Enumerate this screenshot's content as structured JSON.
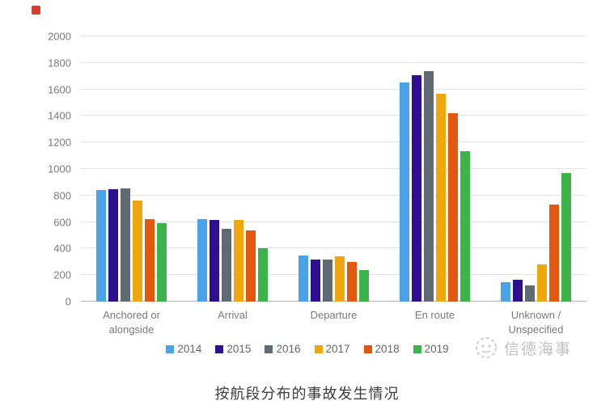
{
  "corner_icon": {
    "color": "#df3b2a"
  },
  "chart_data": {
    "type": "bar",
    "title": "按航段分布的事故发生情况",
    "categories": [
      "Anchored or alongside",
      "Arrival",
      "Departure",
      "En route",
      "Unknown / Unspecified"
    ],
    "category_labels_wrapped": [
      "Anchored or\nalongside",
      "Arrival",
      "Departure",
      "En route",
      "Unknown /\nUnspecified"
    ],
    "series": [
      {
        "name": "2014",
        "color": "#4aa3e8",
        "values": [
          840,
          625,
          345,
          1655,
          145
        ]
      },
      {
        "name": "2015",
        "color": "#2d0f8f",
        "values": [
          845,
          615,
          315,
          1705,
          165
        ]
      },
      {
        "name": "2016",
        "color": "#5f6a75",
        "values": [
          855,
          550,
          320,
          1740,
          125
        ]
      },
      {
        "name": "2017",
        "color": "#f0a70e",
        "values": [
          765,
          615,
          340,
          1565,
          280
        ]
      },
      {
        "name": "2018",
        "color": "#e2580f",
        "values": [
          620,
          535,
          300,
          1420,
          730
        ]
      },
      {
        "name": "2019",
        "color": "#3cb44a",
        "values": [
          590,
          405,
          240,
          1135,
          970
        ]
      }
    ],
    "xlabel": "",
    "ylabel": "",
    "ylim": [
      0,
      2000
    ],
    "yticks": [
      0,
      200,
      400,
      600,
      800,
      1000,
      1200,
      1400,
      1600,
      1800,
      2000
    ],
    "grid": true,
    "grid_color": "#e3e3e3",
    "baseline_color": "#b3b3b3",
    "axis_label_color": "#7a7a7a",
    "legend_position": "bottom"
  },
  "watermark": {
    "text": "信德海事"
  },
  "caption": {
    "text": "按航段分布的事故发生情况"
  }
}
